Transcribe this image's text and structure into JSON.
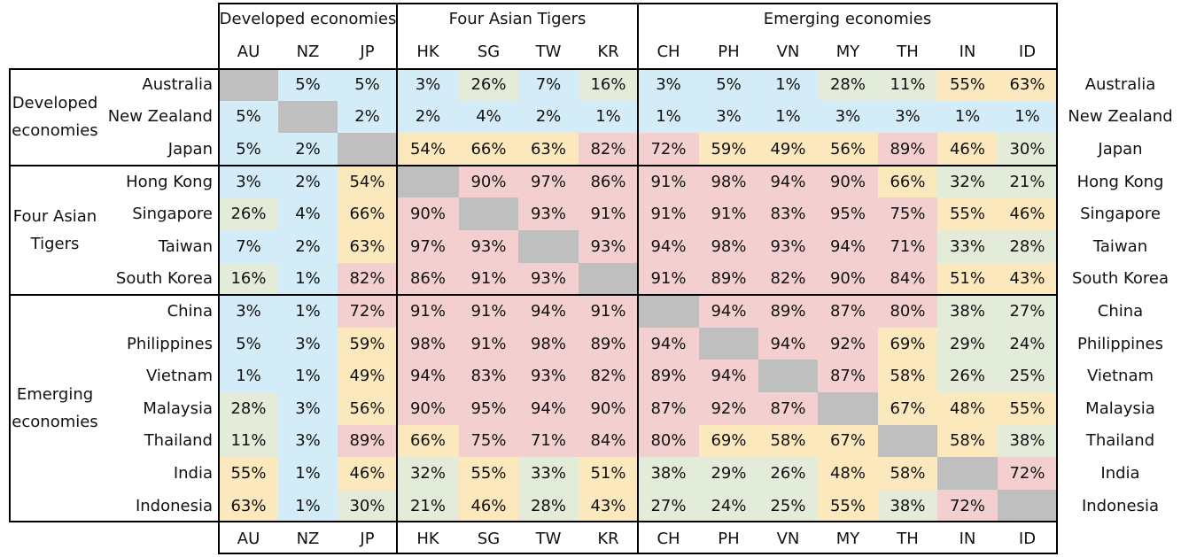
{
  "chart_data": {
    "type": "heatmap",
    "title": "",
    "xlabel": "",
    "ylabel": "",
    "groups": [
      {
        "label": "Developed economies",
        "col_label": "Developed economies",
        "row_label_lines": [
          "Developed",
          "economies"
        ]
      },
      {
        "label": "Four Asian Tigers",
        "col_label": "Four Asian Tigers",
        "row_label_lines": [
          "Four Asian",
          "Tigers"
        ]
      },
      {
        "label": "Emerging economies",
        "col_label": "Emerging economies",
        "row_label_lines": [
          "Emerging",
          "economies"
        ]
      }
    ],
    "columns": [
      "AU",
      "NZ",
      "JP",
      "HK",
      "SG",
      "TW",
      "KR",
      "CH",
      "PH",
      "VN",
      "MY",
      "TH",
      "IN",
      "ID"
    ],
    "rows": [
      "Australia",
      "New Zealand",
      "Japan",
      "Hong Kong",
      "Singapore",
      "Taiwan",
      "South Korea",
      "China",
      "Philippines",
      "Vietnam",
      "Malaysia",
      "Thailand",
      "India",
      "Indonesia"
    ],
    "values": [
      [
        null,
        5,
        5,
        3,
        26,
        7,
        16,
        3,
        5,
        1,
        28,
        11,
        55,
        63
      ],
      [
        5,
        null,
        2,
        2,
        4,
        2,
        1,
        1,
        3,
        1,
        3,
        3,
        1,
        1
      ],
      [
        5,
        2,
        null,
        54,
        66,
        63,
        82,
        72,
        59,
        49,
        56,
        89,
        46,
        30
      ],
      [
        3,
        2,
        54,
        null,
        90,
        97,
        86,
        91,
        98,
        94,
        90,
        66,
        32,
        21
      ],
      [
        26,
        4,
        66,
        90,
        null,
        93,
        91,
        91,
        91,
        83,
        95,
        75,
        55,
        46
      ],
      [
        7,
        2,
        63,
        97,
        93,
        null,
        93,
        94,
        98,
        93,
        94,
        71,
        33,
        28
      ],
      [
        16,
        1,
        82,
        86,
        91,
        93,
        null,
        91,
        89,
        82,
        90,
        84,
        51,
        43
      ],
      [
        3,
        1,
        72,
        91,
        91,
        94,
        91,
        null,
        94,
        89,
        87,
        80,
        38,
        27
      ],
      [
        5,
        3,
        59,
        98,
        91,
        98,
        89,
        94,
        null,
        94,
        92,
        69,
        29,
        24
      ],
      [
        1,
        1,
        49,
        94,
        83,
        93,
        82,
        89,
        94,
        null,
        87,
        58,
        26,
        25
      ],
      [
        28,
        3,
        56,
        90,
        95,
        94,
        90,
        87,
        92,
        87,
        null,
        67,
        48,
        55
      ],
      [
        11,
        3,
        89,
        66,
        75,
        71,
        84,
        80,
        69,
        58,
        67,
        null,
        58,
        38
      ],
      [
        55,
        1,
        46,
        32,
        55,
        33,
        51,
        38,
        29,
        26,
        48,
        58,
        null,
        72
      ],
      [
        63,
        1,
        30,
        21,
        46,
        28,
        43,
        27,
        24,
        25,
        55,
        38,
        72,
        null
      ]
    ],
    "value_suffix": "%",
    "colors": {
      "low": "#d3ecf7",
      "low_mid": "#e3ecd9",
      "mid": "#fce8bd",
      "high": "#f4cfd0",
      "diagonal": "#bfbfbf"
    }
  }
}
